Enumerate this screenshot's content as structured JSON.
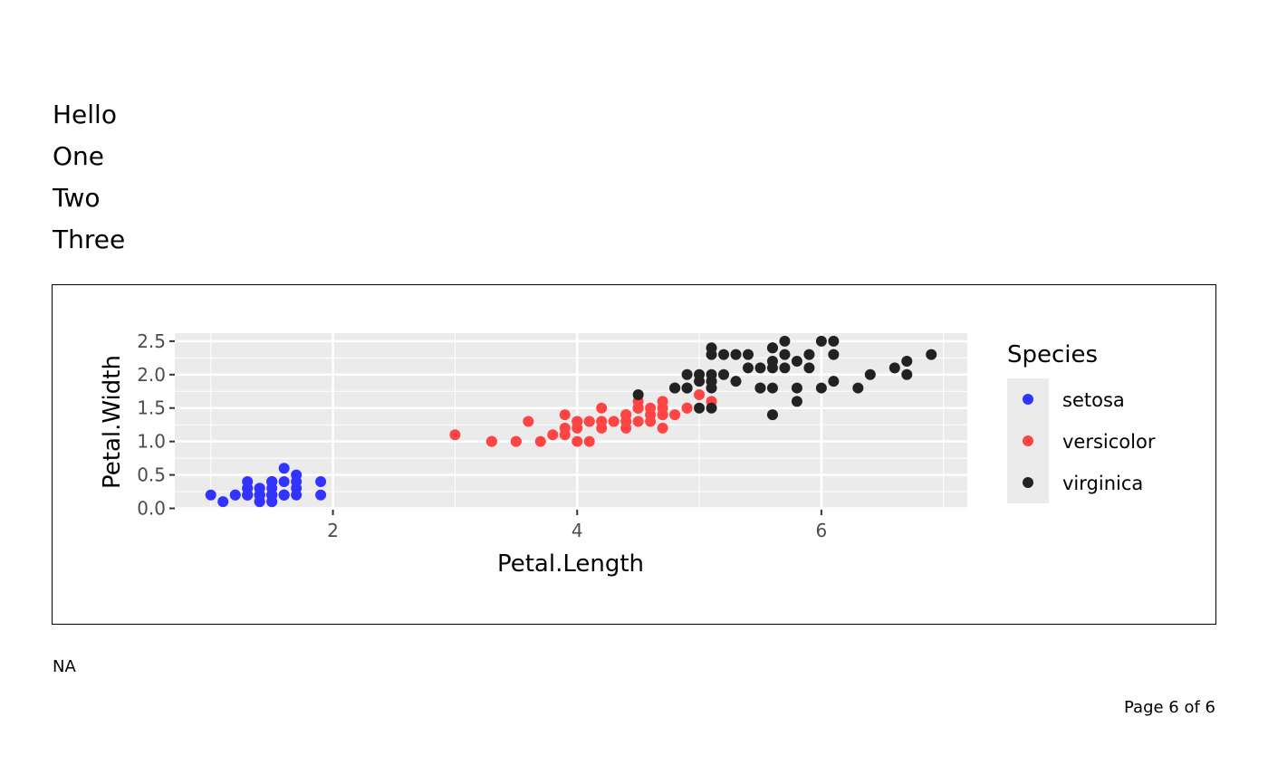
{
  "lines": [
    "Hello",
    "One",
    "Two",
    "Three"
  ],
  "note": "NA",
  "footer": "Page 6 of 6",
  "chart_data": {
    "type": "scatter",
    "xlabel": "Petal.Length",
    "ylabel": "Petal.Width",
    "xlim": [
      0.705,
      7.195
    ],
    "ylim": [
      -0.02,
      2.62
    ],
    "xticks": [
      2,
      4,
      6
    ],
    "yticks": [
      0.0,
      0.5,
      1.0,
      1.5,
      2.0,
      2.5
    ],
    "ytick_labels": [
      "0.0",
      "0.5",
      "1.0",
      "1.5",
      "2.0",
      "2.5"
    ],
    "grid": true,
    "legend": {
      "title": "Species",
      "position": "right"
    },
    "series": [
      {
        "name": "setosa",
        "color": "#3333ff",
        "x": [
          1.4,
          1.4,
          1.3,
          1.5,
          1.4,
          1.7,
          1.4,
          1.5,
          1.4,
          1.5,
          1.5,
          1.6,
          1.4,
          1.1,
          1.2,
          1.5,
          1.3,
          1.4,
          1.7,
          1.5,
          1.7,
          1.5,
          1.0,
          1.7,
          1.9,
          1.6,
          1.6,
          1.5,
          1.4,
          1.6,
          1.6,
          1.5,
          1.5,
          1.4,
          1.5,
          1.2,
          1.3,
          1.4,
          1.3,
          1.5,
          1.3,
          1.3,
          1.3,
          1.6,
          1.9,
          1.4,
          1.6,
          1.4,
          1.5,
          1.4
        ],
        "y": [
          0.2,
          0.2,
          0.2,
          0.2,
          0.2,
          0.4,
          0.3,
          0.2,
          0.2,
          0.1,
          0.2,
          0.2,
          0.1,
          0.1,
          0.2,
          0.4,
          0.4,
          0.3,
          0.3,
          0.3,
          0.2,
          0.4,
          0.2,
          0.5,
          0.2,
          0.2,
          0.4,
          0.2,
          0.2,
          0.2,
          0.2,
          0.4,
          0.1,
          0.2,
          0.2,
          0.2,
          0.2,
          0.1,
          0.2,
          0.2,
          0.3,
          0.3,
          0.2,
          0.6,
          0.4,
          0.3,
          0.2,
          0.2,
          0.2,
          0.2
        ]
      },
      {
        "name": "versicolor",
        "color": "#ff4444",
        "x": [
          4.7,
          4.5,
          4.9,
          4.0,
          4.6,
          4.5,
          4.7,
          3.3,
          4.6,
          3.9,
          3.5,
          4.2,
          4.0,
          4.7,
          3.6,
          4.4,
          4.5,
          4.1,
          4.5,
          3.9,
          4.8,
          4.0,
          4.9,
          4.7,
          4.3,
          4.4,
          4.8,
          5.0,
          4.5,
          3.5,
          3.8,
          3.7,
          3.9,
          5.1,
          4.5,
          4.5,
          4.7,
          4.4,
          4.1,
          4.0,
          4.4,
          4.6,
          4.0,
          3.3,
          4.2,
          4.2,
          4.2,
          4.3,
          3.0,
          4.1
        ],
        "y": [
          1.4,
          1.5,
          1.5,
          1.3,
          1.5,
          1.3,
          1.6,
          1.0,
          1.3,
          1.4,
          1.0,
          1.5,
          1.0,
          1.4,
          1.3,
          1.4,
          1.5,
          1.0,
          1.5,
          1.1,
          1.8,
          1.3,
          1.5,
          1.2,
          1.3,
          1.4,
          1.4,
          1.7,
          1.5,
          1.0,
          1.1,
          1.0,
          1.2,
          1.6,
          1.5,
          1.6,
          1.5,
          1.3,
          1.3,
          1.3,
          1.2,
          1.4,
          1.2,
          1.0,
          1.3,
          1.2,
          1.3,
          1.3,
          1.1,
          1.3
        ]
      },
      {
        "name": "virginica",
        "color": "#222222",
        "x": [
          6.0,
          5.1,
          5.9,
          5.6,
          5.8,
          6.6,
          4.5,
          6.3,
          5.8,
          6.1,
          5.1,
          5.3,
          5.5,
          5.0,
          5.1,
          5.3,
          5.5,
          6.7,
          6.9,
          5.0,
          5.7,
          4.9,
          6.7,
          4.9,
          5.7,
          6.0,
          4.8,
          4.9,
          5.6,
          5.8,
          6.1,
          6.4,
          5.6,
          5.1,
          5.6,
          6.1,
          5.6,
          5.5,
          4.8,
          5.4,
          5.6,
          5.1,
          5.1,
          5.9,
          5.7,
          5.2,
          5.0,
          5.2,
          5.4,
          5.1
        ],
        "y": [
          2.5,
          1.9,
          2.1,
          1.8,
          2.2,
          2.1,
          1.7,
          1.8,
          1.8,
          2.5,
          2.0,
          1.9,
          2.1,
          2.0,
          2.4,
          2.3,
          1.8,
          2.2,
          2.3,
          1.5,
          2.3,
          2.0,
          2.0,
          1.8,
          2.1,
          1.8,
          1.8,
          1.8,
          2.1,
          1.6,
          1.9,
          2.0,
          2.2,
          1.5,
          1.4,
          2.3,
          2.4,
          1.8,
          1.8,
          2.1,
          2.4,
          2.3,
          1.9,
          2.3,
          2.5,
          2.3,
          1.9,
          2.0,
          2.3,
          1.8
        ]
      }
    ]
  }
}
